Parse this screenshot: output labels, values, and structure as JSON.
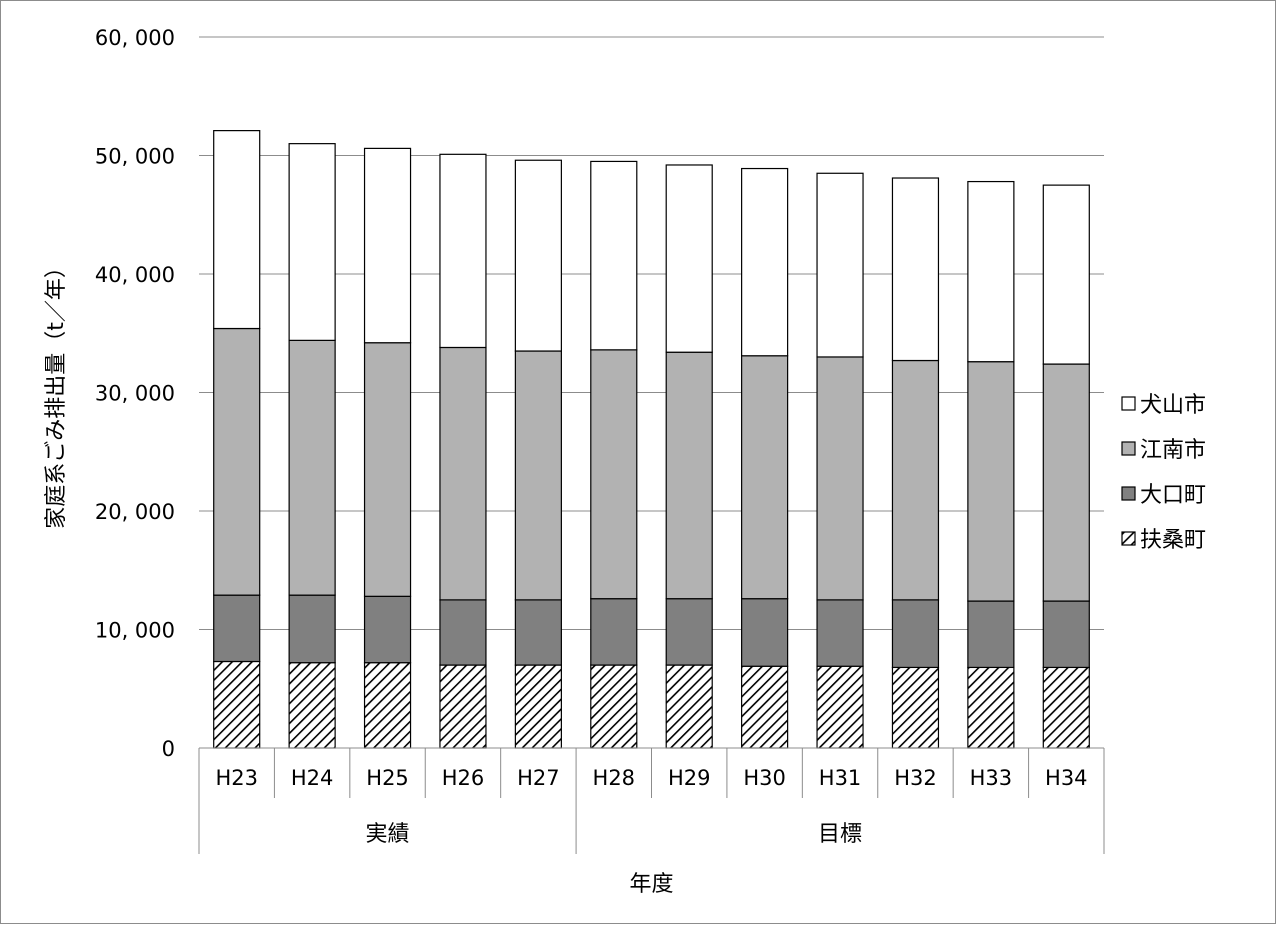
{
  "chart_data": {
    "type": "bar",
    "stacked": true,
    "xlabel": "年度",
    "ylabel": "家庭系ごみ排出量（t／年）",
    "ylim": [
      0,
      60000
    ],
    "yticks": [
      0,
      10000,
      20000,
      30000,
      40000,
      50000,
      60000
    ],
    "ytick_labels": [
      "0",
      "10, 000",
      "20, 000",
      "30, 000",
      "40, 000",
      "50, 000",
      "60, 000"
    ],
    "grid": true,
    "legend_position": "right",
    "categories": [
      "H23",
      "H24",
      "H25",
      "H26",
      "H27",
      "H28",
      "H29",
      "H30",
      "H31",
      "H32",
      "H33",
      "H34"
    ],
    "groups": [
      {
        "label": "実績",
        "count": 5
      },
      {
        "label": "目標",
        "count": 7
      }
    ],
    "series": [
      {
        "name": "扶桑町",
        "fill": "hatch",
        "values": [
          7300,
          7200,
          7200,
          7000,
          7000,
          7000,
          7000,
          6900,
          6900,
          6800,
          6800,
          6800
        ]
      },
      {
        "name": "大口町",
        "fill": "#808080",
        "values": [
          5600,
          5700,
          5600,
          5500,
          5500,
          5600,
          5600,
          5700,
          5600,
          5700,
          5600,
          5600
        ]
      },
      {
        "name": "江南市",
        "fill": "#b2b2b2",
        "values": [
          22500,
          21500,
          21400,
          21300,
          21000,
          21000,
          20800,
          20500,
          20500,
          20200,
          20200,
          20000
        ]
      },
      {
        "name": "犬山市",
        "fill": "#ffffff",
        "values": [
          16700,
          16600,
          16400,
          16300,
          16100,
          15900,
          15800,
          15800,
          15500,
          15400,
          15200,
          15100
        ]
      }
    ]
  }
}
